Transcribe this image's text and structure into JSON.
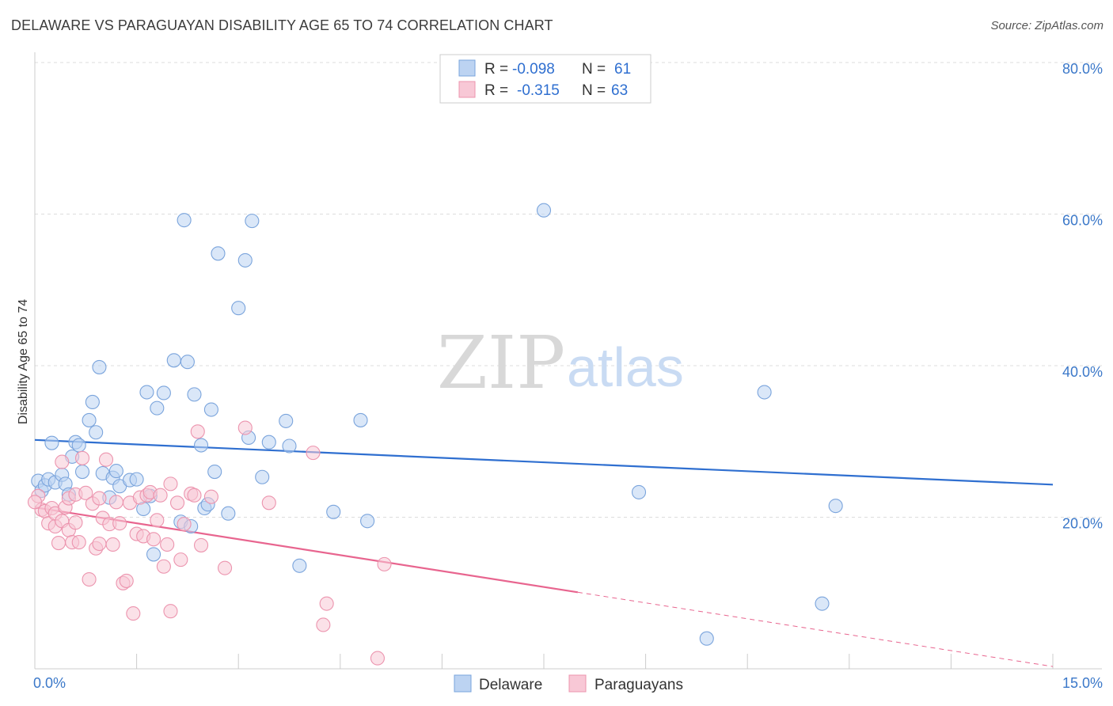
{
  "header": {
    "title": "DELAWARE VS PARAGUAYAN DISABILITY AGE 65 TO 74 CORRELATION CHART",
    "source": "Source: ZipAtlas.com"
  },
  "watermark": {
    "zip": "ZIP",
    "atlas": "atlas"
  },
  "legend_top": {
    "rows": [
      {
        "r_label": "R =",
        "r_value": "-0.098",
        "n_label": "N =",
        "n_value": "61"
      },
      {
        "r_label": "R =",
        "r_value": "-0.315",
        "n_label": "N =",
        "n_value": "63"
      }
    ]
  },
  "legend_bottom": {
    "items": [
      "Delaware",
      "Paraguayans"
    ]
  },
  "colors": {
    "delaware_fill": "#bcd3f2",
    "delaware_stroke": "#7aa4dc",
    "delaware_line": "#2f6fd0",
    "paraguayan_fill": "#f8c8d6",
    "paraguayan_stroke": "#ec94ae",
    "paraguayan_line": "#e8658f"
  },
  "chart_data": {
    "type": "scatter",
    "title": "DELAWARE VS PARAGUAYAN DISABILITY AGE 65 TO 74 CORRELATION CHART",
    "xlabel": "",
    "ylabel": "Disability Age 65 to 74",
    "xlim": [
      0,
      15
    ],
    "ylim": [
      0,
      80
    ],
    "x_tick_labels": [
      "0.0%",
      "15.0%"
    ],
    "y_tick_labels": [
      "20.0%",
      "40.0%",
      "60.0%",
      "80.0%"
    ],
    "y_ticks": [
      20,
      40,
      60,
      80
    ],
    "grid": true,
    "legend_position": "top-center",
    "series": [
      {
        "name": "Delaware",
        "r": -0.098,
        "n": 61,
        "trend": {
          "x": [
            0,
            15
          ],
          "y": [
            30.2,
            24.3
          ]
        },
        "points": [
          [
            0.05,
            24.8
          ],
          [
            0.1,
            23.5
          ],
          [
            0.15,
            24.2
          ],
          [
            0.2,
            25.0
          ],
          [
            0.25,
            29.8
          ],
          [
            0.3,
            24.6
          ],
          [
            0.4,
            25.6
          ],
          [
            0.45,
            24.4
          ],
          [
            0.5,
            23.0
          ],
          [
            0.55,
            28.0
          ],
          [
            0.6,
            29.9
          ],
          [
            0.65,
            29.5
          ],
          [
            0.7,
            26.0
          ],
          [
            0.8,
            32.8
          ],
          [
            0.85,
            35.2
          ],
          [
            0.9,
            31.2
          ],
          [
            0.95,
            39.8
          ],
          [
            1.0,
            25.8
          ],
          [
            1.1,
            22.6
          ],
          [
            1.15,
            25.2
          ],
          [
            1.2,
            26.1
          ],
          [
            1.25,
            24.1
          ],
          [
            1.4,
            24.9
          ],
          [
            1.5,
            25.0
          ],
          [
            1.6,
            21.1
          ],
          [
            1.65,
            36.5
          ],
          [
            1.7,
            22.8
          ],
          [
            1.75,
            15.1
          ],
          [
            1.8,
            34.4
          ],
          [
            1.9,
            36.4
          ],
          [
            2.05,
            40.7
          ],
          [
            2.15,
            19.4
          ],
          [
            2.2,
            59.2
          ],
          [
            2.25,
            40.5
          ],
          [
            2.3,
            18.8
          ],
          [
            2.35,
            36.2
          ],
          [
            2.45,
            29.5
          ],
          [
            2.5,
            21.2
          ],
          [
            2.55,
            21.7
          ],
          [
            2.6,
            34.2
          ],
          [
            2.65,
            26.0
          ],
          [
            2.7,
            54.8
          ],
          [
            2.85,
            20.5
          ],
          [
            3.0,
            47.6
          ],
          [
            3.1,
            53.9
          ],
          [
            3.15,
            30.5
          ],
          [
            3.2,
            59.1
          ],
          [
            3.35,
            25.3
          ],
          [
            3.45,
            29.9
          ],
          [
            3.7,
            32.7
          ],
          [
            3.75,
            29.4
          ],
          [
            3.9,
            13.6
          ],
          [
            4.4,
            20.7
          ],
          [
            4.8,
            32.8
          ],
          [
            4.9,
            19.5
          ],
          [
            7.5,
            60.5
          ],
          [
            8.9,
            23.3
          ],
          [
            9.9,
            4.0
          ],
          [
            10.75,
            36.5
          ],
          [
            11.6,
            8.6
          ],
          [
            11.8,
            21.5
          ]
        ]
      },
      {
        "name": "Paraguayans",
        "r": -0.315,
        "n": 63,
        "trend": {
          "x": [
            0,
            8.0
          ],
          "y": [
            21.3,
            10.1
          ]
        },
        "trend_dashed": {
          "x": [
            8.0,
            15
          ],
          "y": [
            10.1,
            0.3
          ]
        },
        "points": [
          [
            0.05,
            22.8
          ],
          [
            0.1,
            21.0
          ],
          [
            0.15,
            20.8
          ],
          [
            0.2,
            19.2
          ],
          [
            0.25,
            21.2
          ],
          [
            0.3,
            18.8
          ],
          [
            0.3,
            20.5
          ],
          [
            0.35,
            16.6
          ],
          [
            0.4,
            27.3
          ],
          [
            0.4,
            19.5
          ],
          [
            0.45,
            21.3
          ],
          [
            0.5,
            22.5
          ],
          [
            0.5,
            18.3
          ],
          [
            0.55,
            16.7
          ],
          [
            0.6,
            23.0
          ],
          [
            0.65,
            16.7
          ],
          [
            0.7,
            27.8
          ],
          [
            0.75,
            23.2
          ],
          [
            0.8,
            11.8
          ],
          [
            0.85,
            21.8
          ],
          [
            0.9,
            15.9
          ],
          [
            0.95,
            22.5
          ],
          [
            0.95,
            16.5
          ],
          [
            1.0,
            19.9
          ],
          [
            1.05,
            27.6
          ],
          [
            1.1,
            19.1
          ],
          [
            1.15,
            16.4
          ],
          [
            1.2,
            22.0
          ],
          [
            1.25,
            19.2
          ],
          [
            1.3,
            11.3
          ],
          [
            1.35,
            11.6
          ],
          [
            1.4,
            21.9
          ],
          [
            1.45,
            7.3
          ],
          [
            1.5,
            17.8
          ],
          [
            1.55,
            22.6
          ],
          [
            1.6,
            17.5
          ],
          [
            1.65,
            22.9
          ],
          [
            1.7,
            23.3
          ],
          [
            1.75,
            17.1
          ],
          [
            1.8,
            19.6
          ],
          [
            1.85,
            22.9
          ],
          [
            1.9,
            13.5
          ],
          [
            1.95,
            16.4
          ],
          [
            2.0,
            24.4
          ],
          [
            2.0,
            7.6
          ],
          [
            2.1,
            21.9
          ],
          [
            2.15,
            14.4
          ],
          [
            2.2,
            19.1
          ],
          [
            2.3,
            23.1
          ],
          [
            2.35,
            22.9
          ],
          [
            2.4,
            31.3
          ],
          [
            2.45,
            16.3
          ],
          [
            2.6,
            22.7
          ],
          [
            2.8,
            13.3
          ],
          [
            3.1,
            31.8
          ],
          [
            3.45,
            21.9
          ],
          [
            4.1,
            28.5
          ],
          [
            4.25,
            5.8
          ],
          [
            4.3,
            8.6
          ],
          [
            5.05,
            1.4
          ],
          [
            5.15,
            13.8
          ],
          [
            0.0,
            22.0
          ],
          [
            0.6,
            19.3
          ]
        ]
      }
    ]
  }
}
